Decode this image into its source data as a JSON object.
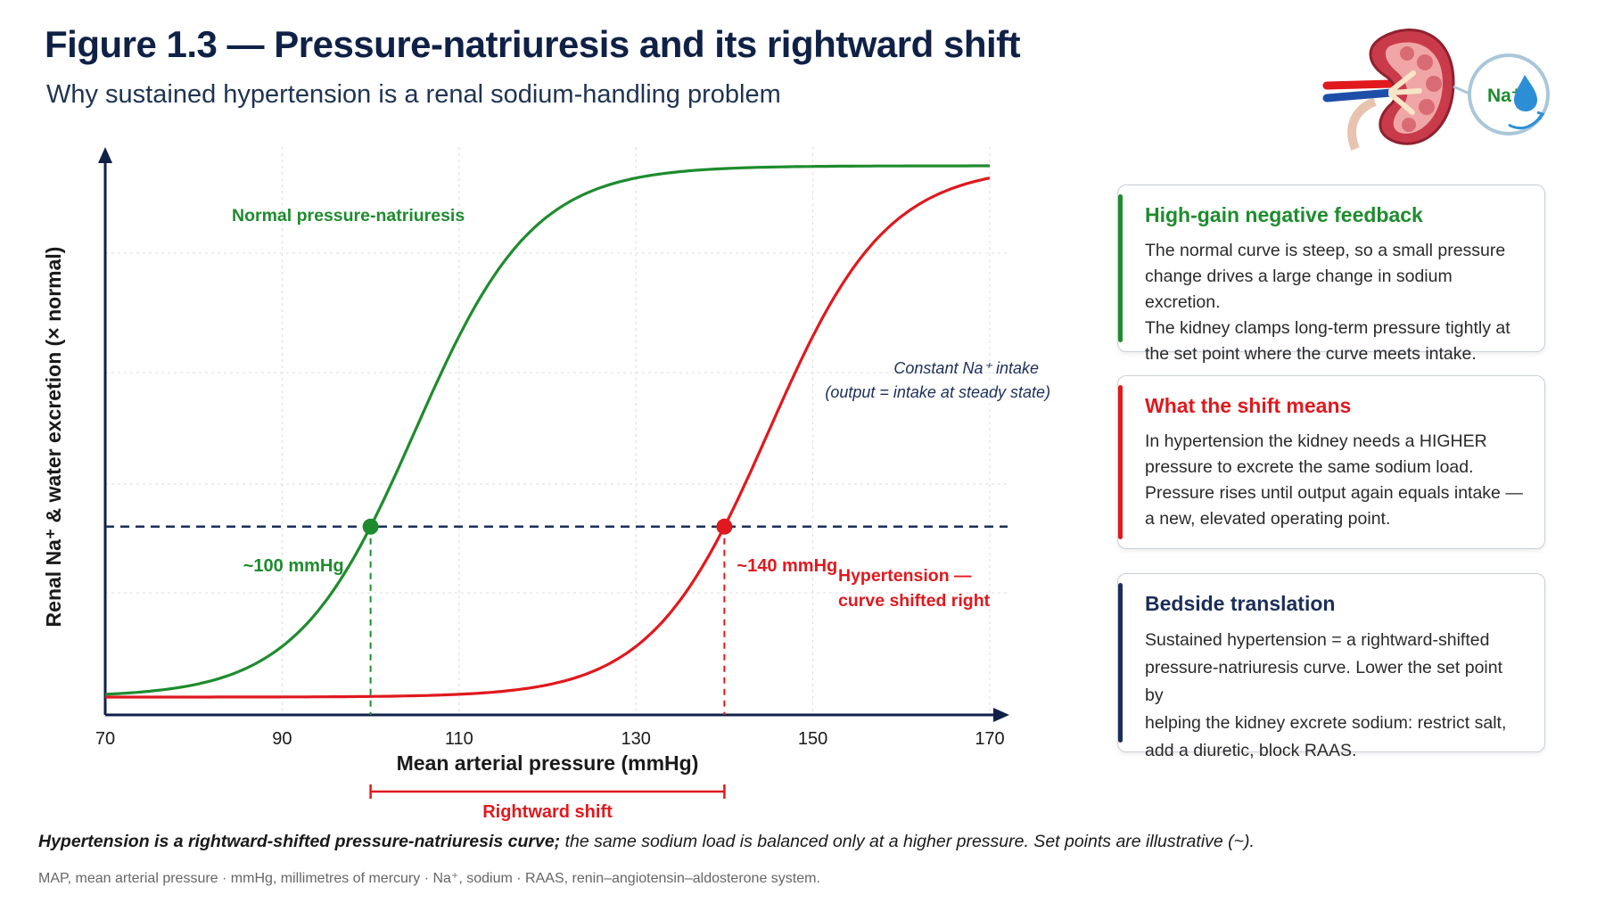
{
  "header": {
    "title": "Figure 1.3 — Pressure-natriuresis and its rightward shift",
    "subtitle": "Why sustained hypertension is a renal sodium-handling problem"
  },
  "icon": {
    "kidney_icon": "kidney-icon",
    "badge_label": "Na⁺",
    "droplet_icon": "water-drop-icon"
  },
  "chart_data": {
    "type": "line",
    "xlabel": "Mean arterial pressure (mmHg)",
    "ylabel": "Renal Na⁺ & water excretion (× normal)",
    "xlim": [
      70,
      170
    ],
    "x_ticks": [
      "70",
      "90",
      "110",
      "130",
      "150",
      "170"
    ],
    "grid": true,
    "series": [
      {
        "name": "Normal pressure-natriuresis",
        "color": "#1e8c2e",
        "midpoint": 105,
        "intake_crossing": 100
      },
      {
        "name": "Hypertension — curve shifted right",
        "color": "#e0191e",
        "midpoint": 145,
        "intake_crossing": 140
      }
    ],
    "intake_line": {
      "label_line1": "Constant Na⁺ intake",
      "label_line2": "(output = intake at steady state)",
      "color": "#1b2e5a"
    },
    "set_points": [
      {
        "x": 100,
        "label": "~100 mmHg",
        "color": "#1e8c2e"
      },
      {
        "x": 140,
        "label": "~140 mmHg",
        "color": "#e0191e"
      }
    ],
    "annotations": {
      "normal_label": "Normal pressure-natriuresis",
      "hyper_label_line1": "Hypertension —",
      "hyper_label_line2": "curve shifted right",
      "shift_label": "Rightward shift"
    }
  },
  "cards": [
    {
      "title": "High-gain negative feedback",
      "color": "#1e8c2e",
      "lines": [
        "The normal curve is steep, so a small pressure",
        "change drives a large change in sodium excretion.",
        "The kidney clamps long-term pressure tightly at",
        "the set point where the curve meets intake."
      ]
    },
    {
      "title": "What the shift means",
      "color": "#e0191e",
      "lines": [
        "In hypertension the kidney needs a HIGHER",
        "pressure to excrete the same sodium load.",
        "Pressure rises until output again equals intake —",
        "a new, elevated operating point."
      ]
    },
    {
      "title": "Bedside translation",
      "color": "#1b2e5a",
      "lines": [
        "Sustained hypertension = a rightward-shifted",
        "pressure-natriuresis curve. Lower the set point by",
        "helping the kidney excrete sodium: restrict salt,",
        "add a diuretic, block RAAS."
      ]
    }
  ],
  "footer": {
    "caption_bold": "Hypertension is a rightward-shifted pressure-natriuresis curve;",
    "caption_rest": " the same sodium load is balanced only at a higher pressure. Set points are illustrative (~).",
    "abbreviations": "MAP, mean arterial pressure · mmHg, millimetres of mercury · Na⁺, sodium · RAAS, renin–angiotensin–aldosterone system."
  }
}
